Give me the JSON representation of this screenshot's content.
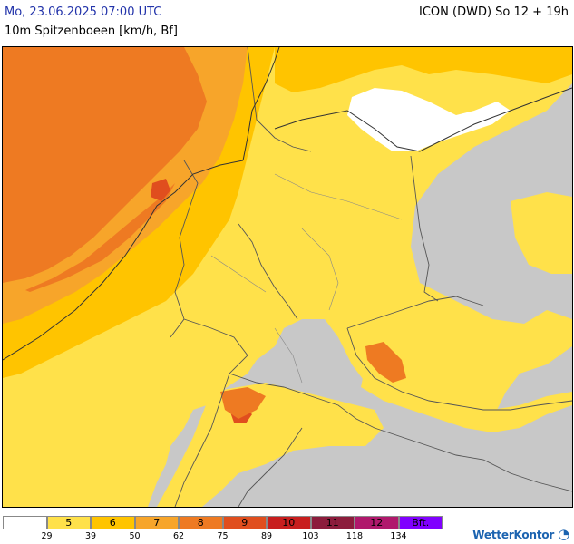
{
  "header": {
    "date_time": "Mo, 23.06.2025 07:00 UTC",
    "parameter": "10m Spitzenboeen [km/h, Bf]",
    "model_run": "ICON (DWD) So 12 + 19h"
  },
  "colors": {
    "no_data": "#c8c8c8",
    "bf5": "#ffe14a",
    "bf6": "#ffc400",
    "bf7": "#f7a52a",
    "bf8": "#ee7a22",
    "bf9": "#e04e1e",
    "bf10": "#c81e1e",
    "bf11": "#8c1c3c",
    "bf12": "#b0186c",
    "bft": "#8000ff"
  },
  "legend": {
    "cells": [
      {
        "label": "",
        "color": "#ffffff"
      },
      {
        "label": "5",
        "color": "#ffe14a"
      },
      {
        "label": "6",
        "color": "#ffc400"
      },
      {
        "label": "7",
        "color": "#f7a52a"
      },
      {
        "label": "8",
        "color": "#ee7a22"
      },
      {
        "label": "9",
        "color": "#e04e1e"
      },
      {
        "label": "10",
        "color": "#c81e1e"
      },
      {
        "label": "11",
        "color": "#8c1c3c"
      },
      {
        "label": "12",
        "color": "#b0186c"
      },
      {
        "label": "Bft.",
        "color": "#8000ff"
      }
    ],
    "ticks": [
      "29",
      "39",
      "50",
      "62",
      "75",
      "89",
      "103",
      "118",
      "134"
    ]
  },
  "brand": {
    "name": "WetterKontor",
    "icon": "wetterkontor-logo-icon"
  }
}
